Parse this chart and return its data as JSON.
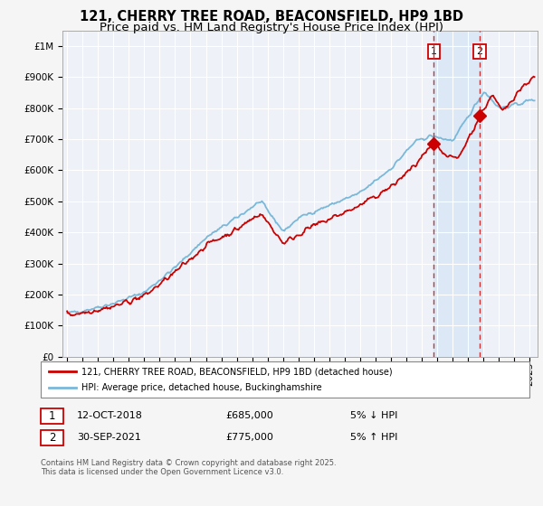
{
  "title": "121, CHERRY TREE ROAD, BEACONSFIELD, HP9 1BD",
  "subtitle": "Price paid vs. HM Land Registry's House Price Index (HPI)",
  "legend_line1": "121, CHERRY TREE ROAD, BEACONSFIELD, HP9 1BD (detached house)",
  "legend_line2": "HPI: Average price, detached house, Buckinghamshire",
  "footnote": "Contains HM Land Registry data © Crown copyright and database right 2025.\nThis data is licensed under the Open Government Licence v3.0.",
  "sale1_date": "12-OCT-2018",
  "sale1_price": "£685,000",
  "sale1_note": "5% ↓ HPI",
  "sale2_date": "30-SEP-2021",
  "sale2_price": "£775,000",
  "sale2_note": "5% ↑ HPI",
  "sale1_year": 2018.78,
  "sale2_year": 2021.75,
  "sale1_value": 685000,
  "sale2_value": 775000,
  "red_line_color": "#cc0000",
  "blue_line_color": "#7ab8d9",
  "background_color": "#f5f5f5",
  "plot_bg_color": "#eef2f8",
  "grid_color": "#ffffff",
  "dashed_line_color": "#cc3333",
  "highlight_bg_color": "#dce8f5",
  "ylim": [
    0,
    1050000
  ],
  "xlim_start": 1994.7,
  "xlim_end": 2025.5,
  "title_fontsize": 10.5,
  "subtitle_fontsize": 9.5,
  "tick_fontsize": 7.5
}
